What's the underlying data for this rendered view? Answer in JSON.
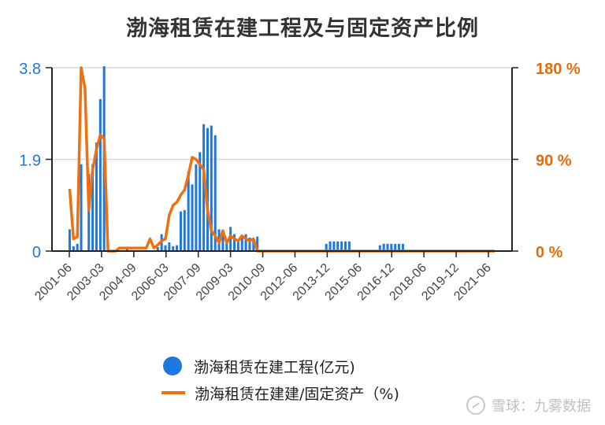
{
  "title": "渤海租赁在建工程及与固定资产比例",
  "colors": {
    "bar": "#1f77e0",
    "line": "#f07010",
    "left_axis_text": "#1f77e0",
    "right_axis_text": "#e36c09",
    "grid": "#d9d9d9"
  },
  "legend": {
    "bar_label": "渤海租赁在建工程(亿元)",
    "line_label": "渤海租赁在建建/固定资产（%)"
  },
  "watermark": {
    "text": "雪球：九雾数据",
    "icon": "snowball-logo-icon"
  },
  "chart_data": {
    "type": "bar+line",
    "title": "渤海租赁在建工程及与固定资产比例",
    "x_tick_labels": [
      "2001-06",
      "2003-03",
      "2004-09",
      "2006-03",
      "2007-09",
      "2009-03",
      "2010-09",
      "2012-06",
      "2013-12",
      "2015-06",
      "2016-12",
      "2018-06",
      "2019-12",
      "2021-06"
    ],
    "left_axis": {
      "ticks": [
        "0",
        "1.9",
        "3.8"
      ],
      "ylim": [
        0,
        3.8
      ]
    },
    "right_axis": {
      "ticks": [
        "0 %",
        "90 %",
        "180 %"
      ],
      "ylim": [
        0,
        180
      ]
    },
    "grid": true,
    "legend_position": "bottom",
    "series": [
      {
        "name": "渤海租赁在建工程(亿元)",
        "type": "bar",
        "axis": "left",
        "values": [
          0.45,
          0.1,
          0.15,
          1.8,
          0,
          1.6,
          1.8,
          2.25,
          3.15,
          3.83,
          0,
          0,
          0,
          0,
          0,
          0.05,
          0,
          0,
          0,
          0,
          0,
          0,
          0,
          0.08,
          0.35,
          0.12,
          0.18,
          0.1,
          0.12,
          0.82,
          0.85,
          1.65,
          1.38,
          1.8,
          2.05,
          2.63,
          2.55,
          2.6,
          2.4,
          0.45,
          0.38,
          0.18,
          0.5,
          0.35,
          0.22,
          0.3,
          0.35,
          0.28,
          0.25,
          0.3,
          0,
          0,
          0,
          0,
          0,
          0,
          0,
          0,
          0,
          0,
          0,
          0,
          0,
          0,
          0,
          0,
          0,
          0.15,
          0.2,
          0.2,
          0.2,
          0.2,
          0.2,
          0.2,
          0,
          0,
          0,
          0,
          0,
          0,
          0,
          0.12,
          0.15,
          0.15,
          0.15,
          0.15,
          0.15,
          0.15,
          0,
          0,
          0,
          0,
          0,
          0,
          0,
          0,
          0,
          0,
          0,
          0,
          0,
          0,
          0,
          0,
          0,
          0,
          0,
          0,
          0,
          0,
          0,
          0,
          0,
          0,
          0,
          0
        ]
      },
      {
        "name": "渤海租赁在建建/固定资产（%)",
        "type": "line",
        "axis": "right",
        "values": [
          61,
          12,
          14,
          180,
          160,
          40,
          80,
          100,
          114,
          110,
          0,
          0,
          0,
          3,
          3,
          3,
          3,
          3,
          3,
          3,
          3,
          12,
          3,
          6,
          10,
          12,
          35,
          45,
          48,
          55,
          60,
          75,
          92,
          90,
          85,
          80,
          40,
          20,
          15,
          8,
          20,
          8,
          15,
          12,
          10,
          15,
          12,
          10,
          12,
          0,
          0,
          0,
          0,
          0,
          0,
          0,
          0,
          0,
          0,
          0,
          0,
          0,
          0,
          0,
          0,
          0,
          0,
          0,
          0,
          0,
          0,
          0,
          0,
          0,
          0,
          0,
          0,
          0,
          0,
          0,
          0,
          0,
          0,
          0,
          0,
          0,
          0,
          0,
          0,
          0,
          0,
          0,
          0,
          0,
          0,
          0,
          0,
          0,
          0,
          0,
          0,
          0,
          0,
          0,
          0,
          0,
          0,
          0,
          0,
          0,
          0,
          0
        ]
      }
    ]
  }
}
